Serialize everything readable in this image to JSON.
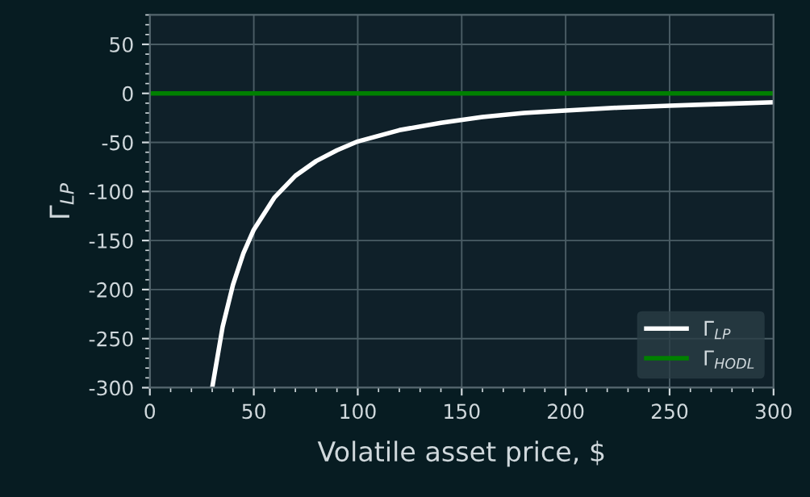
{
  "chart_data": {
    "type": "line",
    "xlabel": "Volatile asset price, $",
    "ylabel": "Γ$_{LP}$",
    "xlim": [
      0,
      300
    ],
    "ylim": [
      -300,
      80
    ],
    "xticks": [
      0,
      50,
      100,
      150,
      200,
      250,
      300
    ],
    "yticks": [
      -300,
      -250,
      -200,
      -150,
      -100,
      -50,
      0,
      50
    ],
    "grid": true,
    "legend": "bottom right",
    "marker": "none",
    "line_style": "solid",
    "series": [
      {
        "name": "Γ$_{LP}$",
        "color": "#ffffff",
        "x": [
          30,
          35,
          40,
          45,
          50,
          60,
          70,
          80,
          90,
          100,
          120,
          140,
          160,
          180,
          200,
          225,
          250,
          275,
          300
        ],
        "values": [
          -300,
          -238,
          -195,
          -163,
          -139,
          -106,
          -84,
          -69,
          -58,
          -49,
          -37.5,
          -30,
          -24,
          -20,
          -17.5,
          -14.6,
          -12.5,
          -10.8,
          -9
        ]
      },
      {
        "name": "Γ$_{HODL}$",
        "color": "#008000",
        "x": [
          0,
          300
        ],
        "values": [
          0,
          0
        ]
      }
    ]
  }
}
